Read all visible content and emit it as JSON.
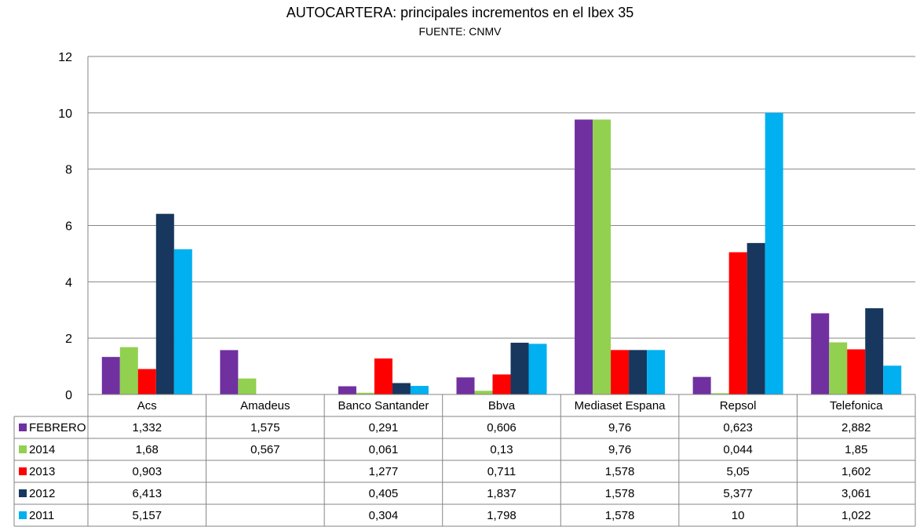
{
  "chart_data": {
    "type": "bar",
    "title": "AUTOCARTERA: principales incrementos en el Ibex 35",
    "subtitle": "FUENTE: CNMV",
    "xlabel": "",
    "ylabel": "",
    "ylim": [
      0,
      12
    ],
    "yticks": [
      "0",
      "2",
      "4",
      "6",
      "8",
      "10",
      "12"
    ],
    "grid": true,
    "legend": "data-table",
    "categories": [
      "Acs",
      "Amadeus",
      "Banco Santander",
      "Bbva",
      "Mediaset Espana",
      "Repsol",
      "Telefonica"
    ],
    "series": [
      {
        "name": "FEBRERO",
        "color": "#7030A0",
        "values": [
          1.332,
          1.575,
          0.291,
          0.606,
          9.76,
          0.623,
          2.882
        ],
        "labels": [
          "1,332",
          "1,575",
          "0,291",
          "0,606",
          "9,76",
          "0,623",
          "2,882"
        ]
      },
      {
        "name": "2014",
        "color": "#92D050",
        "values": [
          1.68,
          0.567,
          0.061,
          0.13,
          9.76,
          0.044,
          1.85
        ],
        "labels": [
          "1,68",
          "0,567",
          "0,061",
          "0,13",
          "9,76",
          "0,044",
          "1,85"
        ]
      },
      {
        "name": "2013",
        "color": "#FF0000",
        "values": [
          0.903,
          null,
          1.277,
          0.711,
          1.578,
          5.05,
          1.602
        ],
        "labels": [
          "0,903",
          "",
          "1,277",
          "0,711",
          "1,578",
          "5,05",
          "1,602"
        ]
      },
      {
        "name": "2012",
        "color": "#17375E",
        "values": [
          6.413,
          null,
          0.405,
          1.837,
          1.578,
          5.377,
          3.061
        ],
        "labels": [
          "6,413",
          "",
          "0,405",
          "1,837",
          "1,578",
          "5,377",
          "3,061"
        ]
      },
      {
        "name": "2011",
        "color": "#00B0F0",
        "values": [
          5.157,
          null,
          0.304,
          1.798,
          1.578,
          10,
          1.022
        ],
        "labels": [
          "5,157",
          "",
          "0,304",
          "1,798",
          "1,578",
          "10",
          "1,022"
        ]
      }
    ]
  }
}
